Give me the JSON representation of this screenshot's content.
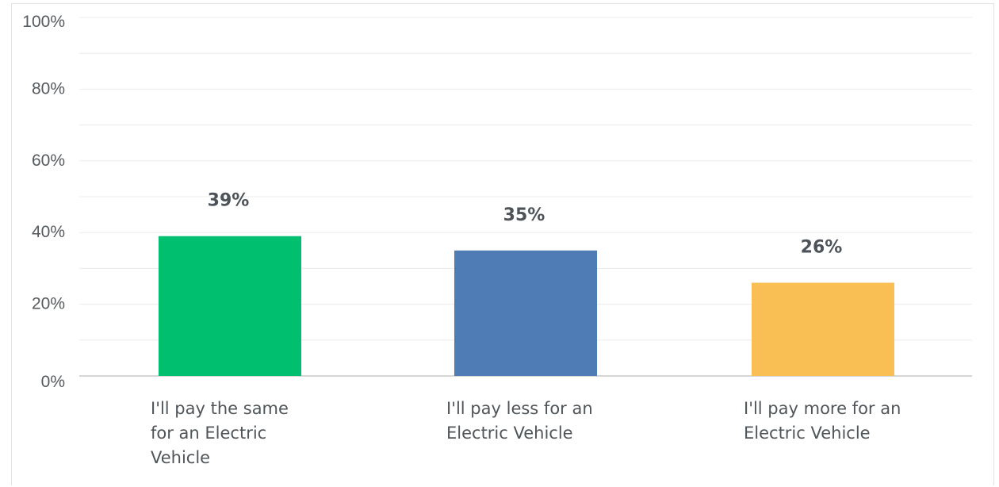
{
  "chart_data": {
    "type": "bar",
    "categories": [
      "I'll pay the same for an Electric Vehicle",
      "I'll pay less for an Electric Vehicle",
      "I'll pay more for an Electric Vehicle"
    ],
    "category_lines": [
      [
        "I'll pay the same",
        "for an Electric",
        "Vehicle"
      ],
      [
        "I'll pay less for an",
        "Electric Vehicle"
      ],
      [
        "I'll pay more for an",
        "Electric Vehicle"
      ]
    ],
    "values": [
      39,
      35,
      26
    ],
    "value_labels": [
      "39%",
      "35%",
      "26%"
    ],
    "colors": [
      "#00bf6f",
      "#507cb6",
      "#f9be54"
    ],
    "title": "",
    "xlabel": "",
    "ylabel": "",
    "ylim": [
      0,
      100
    ],
    "y_ticks": [
      {
        "value": 0,
        "label": "0%"
      },
      {
        "value": 20,
        "label": "20%"
      },
      {
        "value": 40,
        "label": "40%"
      },
      {
        "value": 60,
        "label": "60%"
      },
      {
        "value": 80,
        "label": "80%"
      },
      {
        "value": 100,
        "label": "100%"
      }
    ],
    "grid": true,
    "legend": "none"
  }
}
